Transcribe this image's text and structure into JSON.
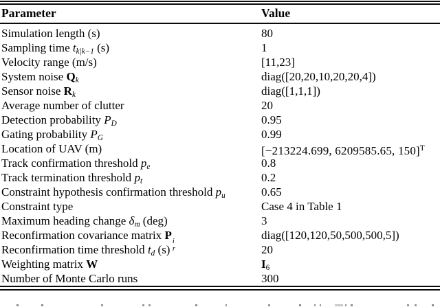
{
  "page": {
    "background_color": "#ffffff",
    "text_color": "#000000",
    "rule_color": "#0a0a0a"
  },
  "table": {
    "header": {
      "param": "Parameter",
      "value": "Value"
    },
    "rows": [
      {
        "param": [
          {
            "t": "Simulation length (s)"
          }
        ],
        "value": [
          {
            "t": "80"
          }
        ]
      },
      {
        "param": [
          {
            "t": "Sampling time "
          },
          {
            "t": "t",
            "i": true
          },
          {
            "t": "k|k−1",
            "sub": true,
            "i": true
          },
          {
            "t": " (s)"
          }
        ],
        "value": [
          {
            "t": "1"
          }
        ]
      },
      {
        "param": [
          {
            "t": "Velocity range (m/s)"
          }
        ],
        "value": [
          {
            "t": "[11,23]"
          }
        ]
      },
      {
        "param": [
          {
            "t": "System noise "
          },
          {
            "t": "Q",
            "b": true
          },
          {
            "t": "k",
            "sub": true,
            "i": true
          }
        ],
        "value": [
          {
            "t": "diag([20,20,10,20,20,4])"
          }
        ]
      },
      {
        "param": [
          {
            "t": "Sensor noise "
          },
          {
            "t": "R",
            "b": true
          },
          {
            "t": "k",
            "sub": true,
            "i": true
          }
        ],
        "value": [
          {
            "t": "diag([1,1,1])"
          }
        ]
      },
      {
        "param": [
          {
            "t": "Average number of clutter"
          }
        ],
        "value": [
          {
            "t": "20"
          }
        ]
      },
      {
        "param": [
          {
            "t": "Detection probability "
          },
          {
            "t": "P",
            "i": true
          },
          {
            "t": "D",
            "sub": true,
            "i": true
          }
        ],
        "value": [
          {
            "t": "0.95"
          }
        ]
      },
      {
        "param": [
          {
            "t": "Gating probability "
          },
          {
            "t": "P",
            "i": true
          },
          {
            "t": "G",
            "sub": true,
            "i": true
          }
        ],
        "value": [
          {
            "t": "0.99"
          }
        ]
      },
      {
        "param": [
          {
            "t": "Location of UAV (m)"
          }
        ],
        "value": [
          {
            "t": "[−213224.699, 6209585.65, 150]",
            "math": true
          },
          {
            "t": "T",
            "sup": true
          }
        ]
      },
      {
        "param": [
          {
            "t": "Track confirmation threshold "
          },
          {
            "t": "p",
            "i": true
          },
          {
            "t": "e",
            "sub": true,
            "i": true
          }
        ],
        "value": [
          {
            "t": "0.8"
          }
        ]
      },
      {
        "param": [
          {
            "t": "Track termination threshold "
          },
          {
            "t": "p",
            "i": true
          },
          {
            "t": "t",
            "sub": true,
            "i": true
          }
        ],
        "value": [
          {
            "t": "0.2"
          }
        ]
      },
      {
        "param": [
          {
            "t": "Constraint hypothesis confirmation threshold "
          },
          {
            "t": "p",
            "i": true
          },
          {
            "t": "u",
            "sub": true,
            "i": true
          }
        ],
        "value": [
          {
            "t": "0.65"
          }
        ]
      },
      {
        "param": [
          {
            "t": "Constraint type"
          }
        ],
        "value": [
          {
            "t": "Case 4 in Table 1"
          }
        ]
      },
      {
        "param": [
          {
            "t": "Maximum heading change "
          },
          {
            "t": "δ",
            "i": true
          },
          {
            "t": "m",
            "sub": true,
            "i": true
          },
          {
            "t": " (deg)"
          }
        ],
        "value": [
          {
            "t": "3"
          }
        ]
      },
      {
        "param": [
          {
            "t": "Reconfirmation covariance matrix "
          },
          {
            "t": "P",
            "b": true
          },
          {
            "stack": {
              "sup": "i",
              "sub": "r"
            }
          }
        ],
        "value": [
          {
            "t": "diag([120,120,50,500,500,5])"
          }
        ]
      },
      {
        "param": [
          {
            "t": "Reconfirmation time threshold "
          },
          {
            "t": "t",
            "i": true
          },
          {
            "t": "d",
            "sub": true,
            "i": true
          },
          {
            "t": " (s)"
          }
        ],
        "value": [
          {
            "t": "20"
          }
        ]
      },
      {
        "param": [
          {
            "t": "Weighting matrix "
          },
          {
            "t": "W",
            "b": true
          }
        ],
        "value": [
          {
            "t": "I",
            "b": true
          },
          {
            "t": "6",
            "sub": true
          }
        ]
      },
      {
        "param": [
          {
            "t": "Number of Monte Carlo runs"
          }
        ],
        "value": [
          {
            "t": "300"
          }
        ]
      }
    ]
  }
}
